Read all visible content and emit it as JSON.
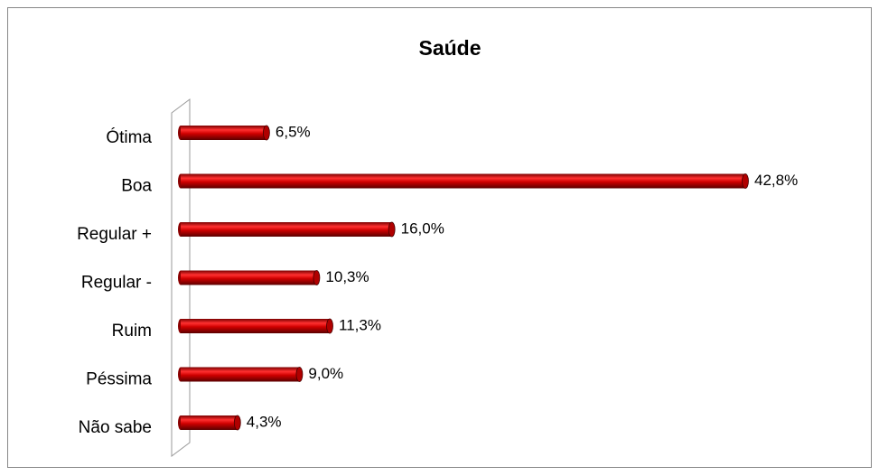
{
  "chart_data": {
    "type": "bar",
    "orientation": "horizontal",
    "title": "Saúde",
    "categories": [
      "Ótima",
      "Boa",
      "Regular +",
      "Regular -",
      "Ruim",
      "Péssima",
      "Não sabe"
    ],
    "values": [
      6.5,
      42.8,
      16.0,
      10.3,
      11.3,
      9.0,
      4.3
    ],
    "value_labels": [
      "6,5%",
      "42,8%",
      "16,0%",
      "10,3%",
      "11,3%",
      "9,0%",
      "4,3%"
    ],
    "color": "#c00000"
  }
}
